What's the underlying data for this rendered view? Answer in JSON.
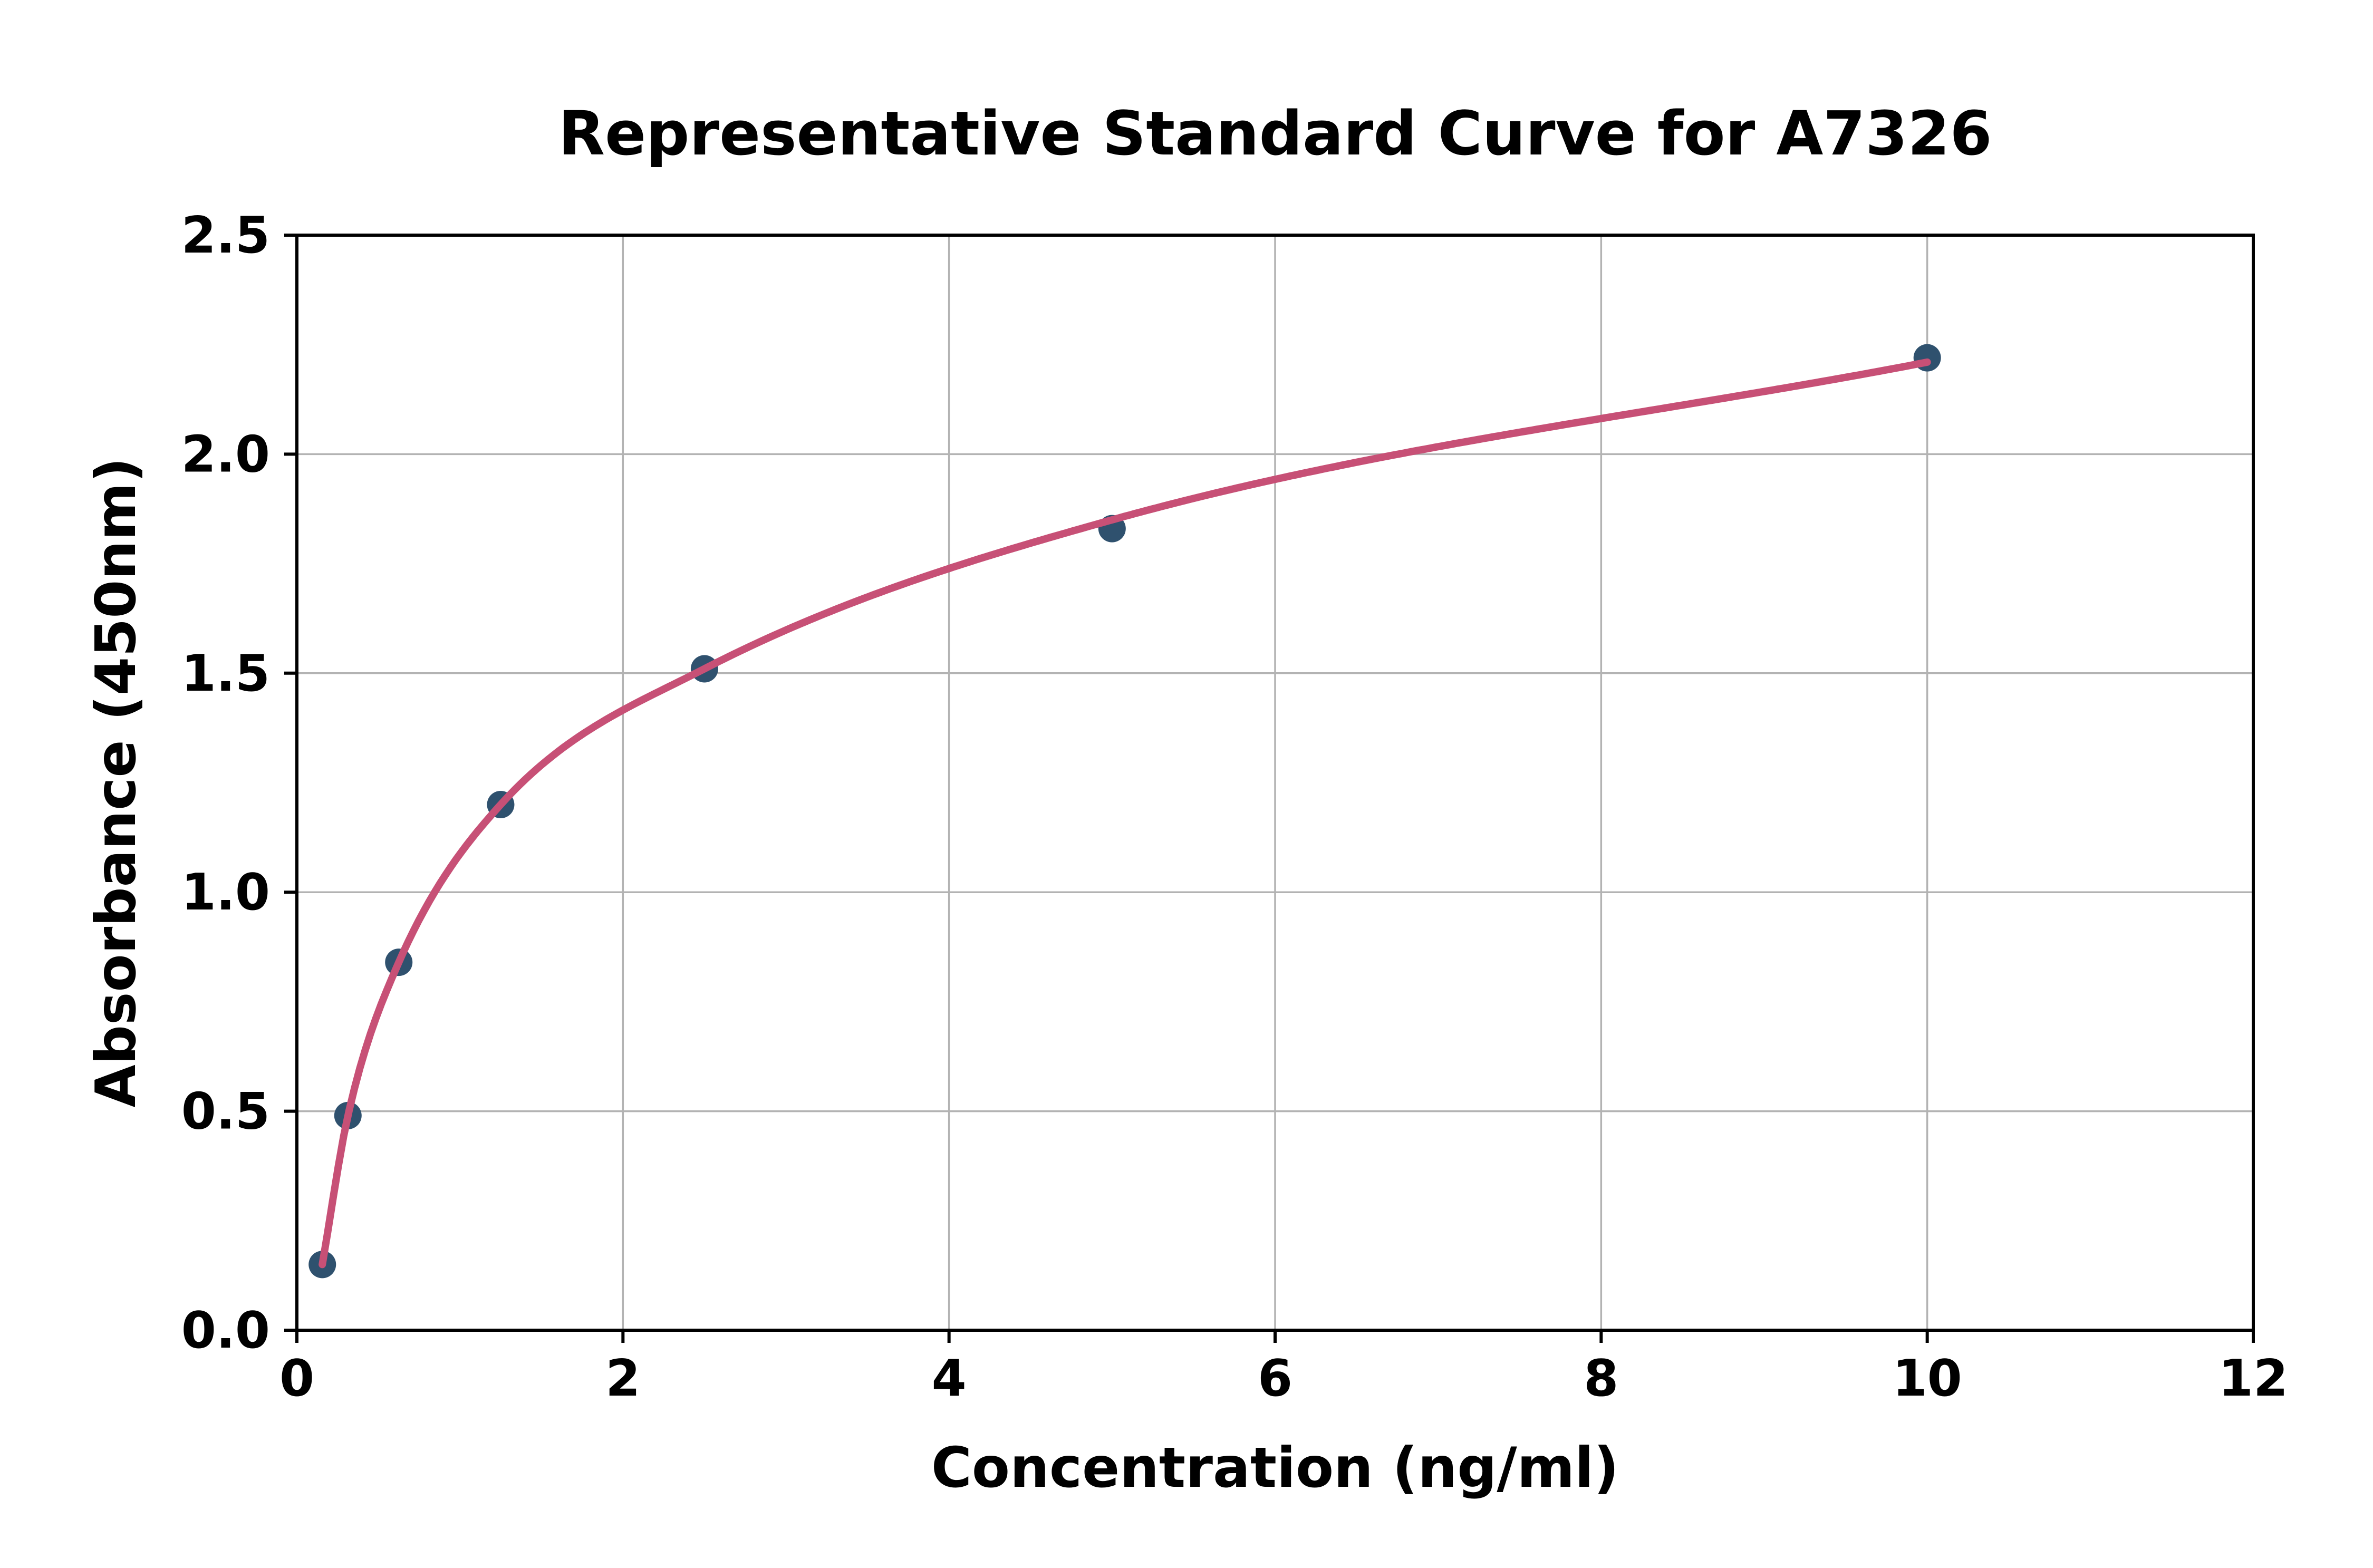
{
  "figure": {
    "background": "#ffffff"
  },
  "chart_data": {
    "type": "scatter",
    "title": "Representative Standard Curve for A7326",
    "xlabel": "Concentration (ng/ml)",
    "ylabel": "Absorbance (450nm)",
    "xlim": [
      0,
      12
    ],
    "ylim": [
      0,
      2.5
    ],
    "xticks": [
      0,
      2,
      4,
      6,
      8,
      10,
      12
    ],
    "xtick_labels": [
      "0",
      "2",
      "4",
      "6",
      "8",
      "10",
      "12"
    ],
    "yticks": [
      0,
      0.5,
      1,
      1.5,
      2,
      2.5
    ],
    "ytick_labels": [
      "0.0",
      "0.5",
      "1.0",
      "1.5",
      "2.0",
      "2.5"
    ],
    "grid": true,
    "grid_color": "#b3b3b3",
    "axis_color": "#000000",
    "text_color": "#000000",
    "legend": "none",
    "series": [
      {
        "name": "standard-data-points",
        "type": "scatter",
        "color": "#2f516e",
        "x": [
          0.156,
          0.313,
          0.625,
          1.25,
          2.5,
          5,
          10
        ],
        "y": [
          0.15,
          0.49,
          0.84,
          1.2,
          1.51,
          1.83,
          2.22
        ]
      },
      {
        "name": "fitted-standard-curve",
        "type": "line",
        "color": "#c75076",
        "x": [
          0.156,
          0.313,
          0.625,
          1.25,
          2.5,
          5,
          10
        ],
        "y": [
          0.15,
          0.49,
          0.84,
          1.2,
          1.51,
          1.85,
          2.21
        ]
      }
    ]
  }
}
